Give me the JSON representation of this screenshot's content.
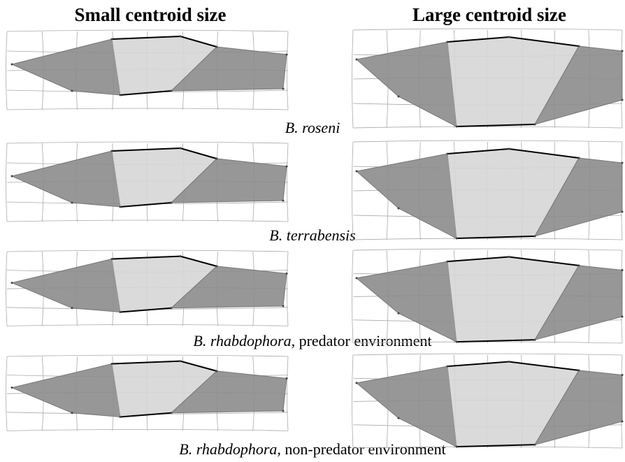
{
  "headers": [
    "Small centroid size",
    "Large centroid size"
  ],
  "rows": [
    {
      "species": "B. roseni"
    },
    {
      "species": "B. terrabensis"
    },
    {
      "species": "B. rhabdophora,",
      "environment": "predator environment"
    },
    {
      "species": "B. rhabdophora,",
      "environment": "non-predator environment"
    }
  ]
}
